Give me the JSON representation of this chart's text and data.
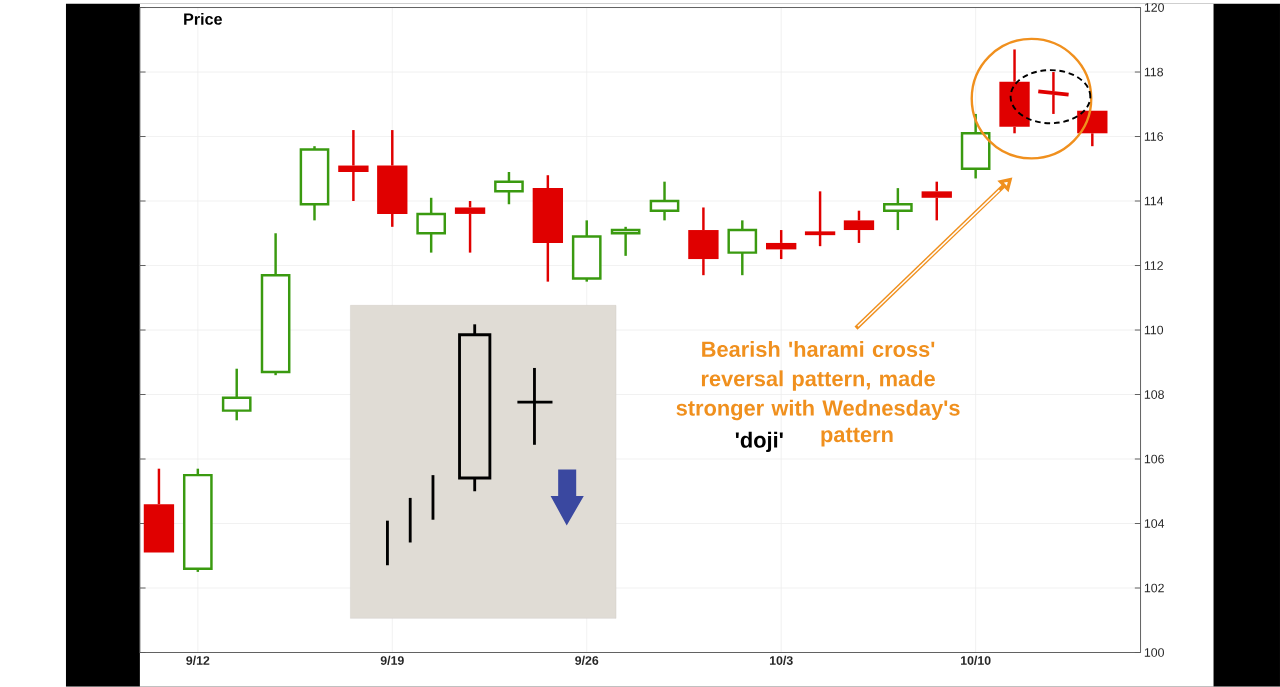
{
  "chart_data": {
    "type": "candlestick",
    "title": "Price",
    "categories": [
      null,
      "9/12",
      null,
      null,
      null,
      null,
      "9/19",
      null,
      null,
      null,
      null,
      "9/26",
      null,
      null,
      null,
      null,
      "10/3",
      null,
      null,
      null,
      null,
      "10/10",
      null,
      null,
      null
    ],
    "ohlc": [
      [
        104.6,
        105.7,
        103.1,
        103.1
      ],
      [
        102.6,
        105.7,
        102.5,
        105.5
      ],
      [
        107.5,
        108.8,
        107.2,
        107.9
      ],
      [
        108.7,
        113.0,
        108.6,
        111.7
      ],
      [
        113.9,
        115.7,
        113.4,
        115.6
      ],
      [
        115.1,
        116.2,
        114.0,
        114.9
      ],
      [
        115.1,
        116.2,
        113.2,
        113.6
      ],
      [
        113.0,
        114.1,
        112.4,
        113.6
      ],
      [
        113.8,
        114.0,
        112.4,
        113.6
      ],
      [
        114.3,
        114.9,
        113.9,
        114.6
      ],
      [
        114.4,
        114.8,
        111.5,
        112.7
      ],
      [
        111.6,
        113.4,
        111.5,
        112.9
      ],
      [
        113.0,
        113.2,
        112.3,
        113.1
      ],
      [
        113.7,
        114.6,
        113.4,
        114.0
      ],
      [
        113.1,
        113.8,
        111.7,
        112.2
      ],
      [
        112.4,
        113.4,
        111.7,
        113.1
      ],
      [
        112.7,
        113.1,
        112.2,
        112.5
      ],
      [
        113.0,
        114.3,
        112.6,
        113.0
      ],
      [
        113.4,
        113.7,
        112.7,
        113.1
      ],
      [
        113.7,
        114.4,
        113.1,
        113.9
      ],
      [
        114.3,
        114.6,
        113.4,
        114.1
      ],
      [
        115.0,
        116.7,
        114.7,
        116.1
      ],
      [
        117.7,
        118.7,
        116.1,
        116.3
      ],
      [
        117.4,
        118.0,
        116.7,
        117.3
      ],
      [
        116.8,
        116.8,
        115.7,
        116.1
      ]
    ],
    "colors": [
      "#e00000",
      "#3a9a10",
      "#3a9a10",
      "#3a9a10",
      "#3a9a10",
      "#e00000",
      "#e00000",
      "#3a9a10",
      "#e00000",
      "#3a9a10",
      "#e00000",
      "#3a9a10",
      "#3a9a10",
      "#3a9a10",
      "#e00000",
      "#3a9a10",
      "#e00000",
      "#e00000",
      "#e00000",
      "#3a9a10",
      "#e00000",
      "#3a9a10",
      "#e00000",
      "#e00000",
      "#e00000"
    ],
    "ylim": [
      100,
      120
    ],
    "yticks": [
      100,
      102,
      104,
      106,
      108,
      110,
      112,
      114,
      116,
      118,
      120
    ],
    "grid": true,
    "annotations": [
      "Bearish 'harami cross' reversal pattern, made stronger with Wednesday's",
      "'doji'",
      "pattern"
    ]
  }
}
